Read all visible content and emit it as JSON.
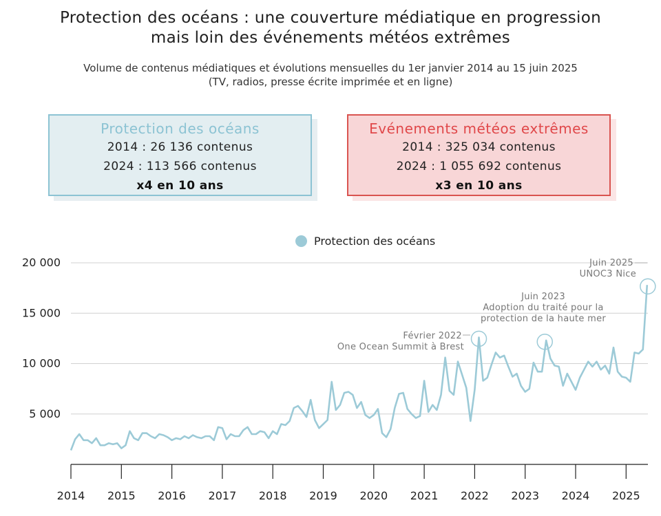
{
  "header": {
    "title_line1": "Protection des océans : une couverture médiatique en progression",
    "title_line2": "mais loin des événements météos extrêmes",
    "subtitle_line1": "Volume de contenus médiatiques et évolutions mensuelles du 1er janvier 2014 au 15 juin 2025",
    "subtitle_line2": "(TV, radios, presse écrite imprimée et en ligne)"
  },
  "boxes": {
    "ocean": {
      "title": "Protection des océans",
      "line1": "2014 : 26 136 contenus",
      "line2": "2024 : 113 566 contenus",
      "line3": "x4 en 10 ans",
      "color": "#8cc3d3"
    },
    "meteo": {
      "title": "Evénements météos extrêmes",
      "line1": "2014 : 325 034 contenus",
      "line2": "2024 : 1 055 692 contenus",
      "line3": "x3 en 10 ans",
      "color": "#e0484a"
    }
  },
  "chart_data": {
    "type": "line",
    "legend_position": "top-center",
    "grid": true,
    "ylim": [
      0,
      20000
    ],
    "y_ticks": [
      {
        "value": 5000,
        "label": "5 000"
      },
      {
        "value": 10000,
        "label": "10 000"
      },
      {
        "value": 15000,
        "label": "15 000"
      },
      {
        "value": 20000,
        "label": "20 000"
      }
    ],
    "x_ticks": [
      "2014",
      "2015",
      "2016",
      "2017",
      "2018",
      "2019",
      "2020",
      "2021",
      "2022",
      "2023",
      "2024",
      "2025"
    ],
    "series": [
      {
        "name": "Protection des océans",
        "color": "#9ccad7",
        "start": "2014-01",
        "values": [
          1400,
          2500,
          3000,
          2400,
          2400,
          2100,
          2600,
          1900,
          1900,
          2100,
          2000,
          2100,
          1600,
          1900,
          3300,
          2600,
          2400,
          3100,
          3100,
          2800,
          2600,
          3000,
          2900,
          2700,
          2400,
          2600,
          2500,
          2800,
          2600,
          2900,
          2700,
          2600,
          2800,
          2800,
          2400,
          3700,
          3600,
          2500,
          3000,
          2800,
          2800,
          3400,
          3700,
          3000,
          3000,
          3300,
          3200,
          2600,
          3300,
          3000,
          4000,
          3900,
          4300,
          5600,
          5800,
          5300,
          4700,
          6400,
          4400,
          3600,
          4000,
          4400,
          8200,
          5400,
          5900,
          7100,
          7200,
          6900,
          5600,
          6200,
          4900,
          4600,
          4900,
          5500,
          3100,
          2700,
          3500,
          5600,
          7000,
          7100,
          5500,
          5000,
          4600,
          4800,
          8300,
          5200,
          5900,
          5400,
          6900,
          10600,
          7300,
          6900,
          10200,
          8900,
          7600,
          4300,
          7400,
          12600,
          8300,
          8600,
          9900,
          11100,
          10600,
          10800,
          9700,
          8700,
          9000,
          7800,
          7200,
          7500,
          10100,
          9200,
          9200,
          12300,
          10500,
          9800,
          9700,
          7800,
          9000,
          8200,
          7400,
          8600,
          9400,
          10200,
          9700,
          10200,
          9400,
          9800,
          9000,
          11600,
          9200,
          8700,
          8600,
          8200,
          11100,
          11000,
          11400,
          17800
        ]
      }
    ],
    "annotations": [
      {
        "line1": "Février 2022",
        "line2": "One Ocean Summit à Brest",
        "date": "2022-02",
        "value": 12600
      },
      {
        "line1": "Juin 2023",
        "line2": "Adoption du traité pour la",
        "line3": "protection de la haute mer",
        "date": "2023-06",
        "value": 12300
      },
      {
        "line1": "Juin 2025",
        "line2": "UNOC3 Nice",
        "date": "2025-06",
        "value": 17800
      }
    ]
  }
}
